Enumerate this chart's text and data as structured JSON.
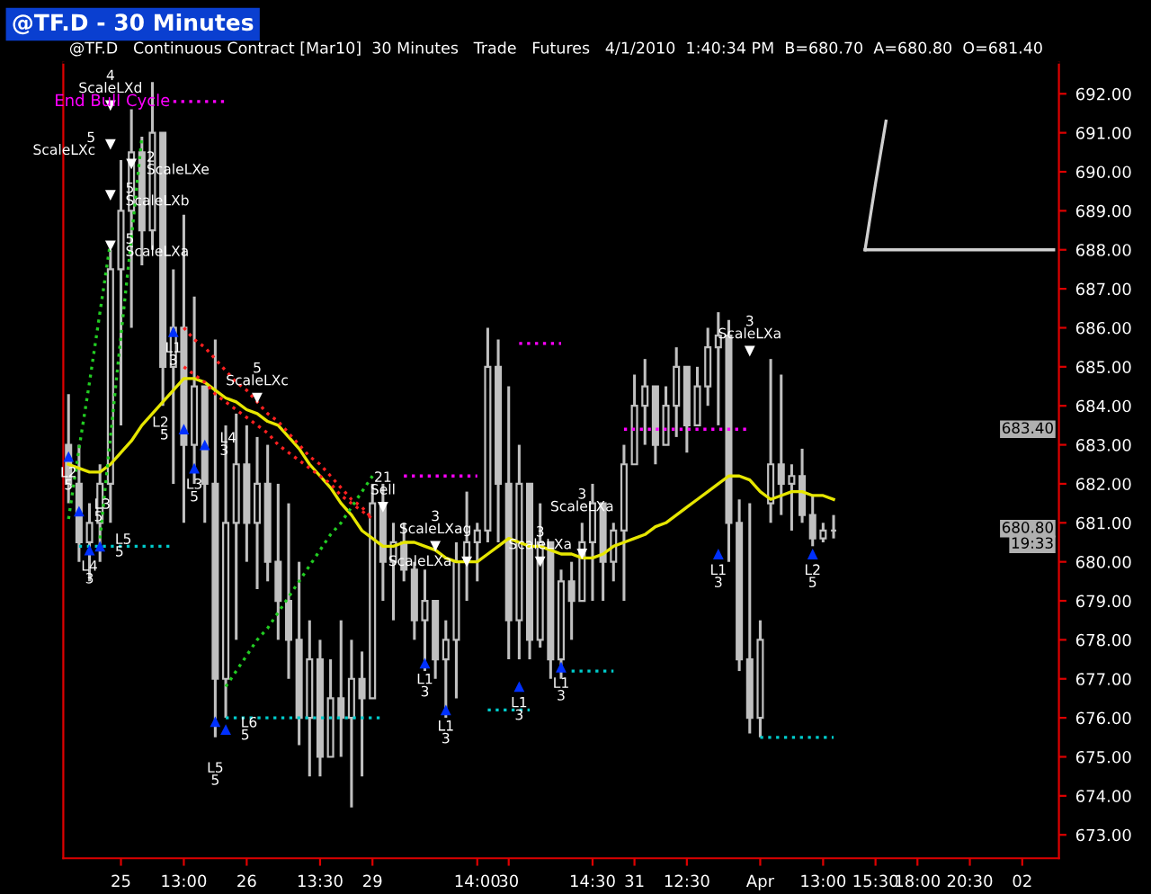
{
  "chart_data": {
    "type": "candlestick",
    "title": "@TF.D - 30 Minutes",
    "subtitle": "@TF.D   Continuous Contract [Mar10]  30 Minutes   Trade   Futures   4/1/2010  1:40:34 PM  B=680.70  A=680.80  O=681.40",
    "categories": [
      null,
      null,
      null,
      null,
      null,
      "25",
      null,
      null,
      null,
      null,
      null,
      "13:00",
      null,
      null,
      null,
      null,
      null,
      "26",
      null,
      null,
      null,
      null,
      null,
      null,
      "13:30",
      null,
      null,
      null,
      null,
      "29",
      null,
      null,
      null,
      null,
      null,
      null,
      null,
      null,
      null,
      "14:00",
      null,
      null,
      "30",
      null,
      null,
      null,
      null,
      null,
      null,
      null,
      "14:30",
      null,
      null,
      null,
      "31",
      null,
      null,
      null,
      null,
      "12:30",
      null,
      null,
      null,
      null,
      null,
      null,
      "Apr",
      null,
      null,
      null,
      null,
      null,
      "13:00",
      null,
      null,
      null,
      null,
      "15:30",
      null,
      null,
      null,
      "18:00",
      null,
      null,
      null,
      null,
      "20:30",
      null,
      null,
      null,
      null,
      "02",
      null,
      null,
      null
    ],
    "color": "#c0c0c0",
    "ohlc": [
      [
        683.0,
        684.3,
        681.5,
        682.0
      ],
      [
        682.0,
        683.0,
        680.0,
        680.5
      ],
      [
        680.5,
        681.5,
        679.5,
        681.0
      ],
      [
        681.0,
        682.5,
        680.0,
        682.0
      ],
      [
        682.0,
        688.0,
        681.0,
        687.5
      ],
      [
        687.5,
        690.3,
        683.5,
        689.0
      ],
      [
        689.0,
        691.6,
        686.0,
        690.5
      ],
      [
        690.5,
        690.9,
        687.6,
        688.5
      ],
      [
        688.5,
        692.3,
        688.0,
        691.0
      ],
      [
        691.0,
        691.0,
        684.0,
        685.0
      ],
      [
        685.0,
        687.5,
        682.0,
        686.0
      ],
      [
        686.0,
        688.9,
        681.0,
        683.0
      ],
      [
        683.0,
        686.8,
        682.0,
        684.5
      ],
      [
        684.5,
        684.5,
        681.0,
        682.0
      ],
      [
        682.0,
        685.7,
        675.5,
        677.0
      ],
      [
        677.0,
        683.5,
        676.0,
        681.0
      ],
      [
        681.0,
        683.8,
        678.0,
        682.5
      ],
      [
        682.5,
        683.5,
        680.0,
        681.0
      ],
      [
        681.0,
        683.2,
        679.3,
        682.0
      ],
      [
        682.0,
        683.0,
        679.5,
        680.0
      ],
      [
        680.0,
        682.0,
        678.0,
        679.0
      ],
      [
        679.0,
        681.5,
        677.0,
        678.0
      ],
      [
        678.0,
        680.0,
        675.3,
        676.0
      ],
      [
        676.0,
        678.5,
        674.5,
        677.5
      ],
      [
        677.5,
        678.0,
        674.5,
        675.0
      ],
      [
        675.0,
        677.5,
        675.0,
        676.5
      ],
      [
        676.5,
        678.5,
        675.0,
        676.0
      ],
      [
        676.0,
        678.0,
        673.7,
        677.0
      ],
      [
        677.0,
        677.7,
        674.5,
        676.5
      ],
      [
        676.5,
        682.0,
        676.5,
        681.5
      ],
      [
        681.5,
        682.0,
        679.0,
        680.0
      ],
      [
        680.0,
        681.0,
        678.5,
        680.5
      ],
      [
        680.5,
        681.0,
        679.5,
        679.8
      ],
      [
        679.8,
        680.0,
        678.0,
        678.5
      ],
      [
        678.5,
        679.8,
        677.2,
        679.0
      ],
      [
        679.0,
        679.0,
        677.0,
        677.5
      ],
      [
        677.5,
        678.5,
        676.0,
        678.0
      ],
      [
        678.0,
        680.5,
        676.5,
        680.0
      ],
      [
        680.0,
        681.8,
        679.0,
        680.5
      ],
      [
        680.5,
        681.0,
        679.5,
        680.8
      ],
      [
        680.8,
        686.0,
        680.5,
        685.0
      ],
      [
        685.0,
        685.7,
        680.5,
        682.0
      ],
      [
        682.0,
        684.5,
        677.5,
        678.5
      ],
      [
        678.5,
        683.0,
        677.5,
        682.0
      ],
      [
        682.0,
        682.0,
        677.5,
        678.0
      ],
      [
        678.0,
        681.5,
        677.8,
        680.5
      ],
      [
        680.5,
        680.5,
        677.0,
        677.5
      ],
      [
        677.5,
        679.8,
        677.0,
        679.5
      ],
      [
        679.5,
        680.0,
        678.0,
        679.0
      ],
      [
        679.0,
        681.0,
        679.0,
        680.5
      ],
      [
        680.5,
        682.0,
        679.0,
        681.5
      ],
      [
        681.5,
        681.5,
        679.0,
        680.0
      ],
      [
        680.0,
        681.0,
        679.5,
        680.8
      ],
      [
        680.8,
        683.0,
        679.0,
        682.5
      ],
      [
        682.5,
        684.8,
        682.5,
        684.0
      ],
      [
        684.0,
        685.2,
        683.0,
        684.5
      ],
      [
        684.5,
        684.5,
        682.5,
        683.0
      ],
      [
        683.0,
        684.5,
        683.0,
        684.0
      ],
      [
        684.0,
        685.5,
        683.2,
        685.0
      ],
      [
        685.0,
        685.0,
        682.8,
        683.5
      ],
      [
        683.5,
        685.0,
        683.5,
        684.5
      ],
      [
        684.5,
        686.0,
        684.0,
        685.5
      ],
      [
        685.5,
        686.4,
        683.5,
        685.8
      ],
      [
        685.8,
        686.2,
        680.0,
        681.0
      ],
      [
        681.0,
        681.6,
        677.2,
        677.5
      ],
      [
        677.5,
        681.5,
        675.6,
        676.0
      ],
      [
        676.0,
        678.5,
        675.5,
        678.0
      ],
      [
        681.5,
        685.2,
        681.0,
        682.5
      ],
      [
        682.5,
        684.8,
        681.2,
        682.0
      ],
      [
        682.0,
        682.5,
        680.8,
        682.2
      ],
      [
        682.2,
        682.9,
        681.0,
        681.2
      ],
      [
        681.2,
        681.7,
        680.4,
        680.6
      ],
      [
        680.6,
        681.0,
        680.5,
        680.8
      ],
      [
        680.8,
        681.2,
        680.6,
        680.8
      ],
      null,
      null,
      null,
      null,
      null,
      null,
      null,
      null,
      null,
      null,
      null,
      null,
      null,
      null,
      null,
      null,
      null,
      null,
      null,
      null,
      null
    ],
    "series": [
      {
        "type": "line",
        "color": "#e6e600",
        "line_style": "solid",
        "values": [
          682.5,
          682.4,
          682.3,
          682.3,
          682.5,
          682.8,
          683.1,
          683.5,
          683.8,
          684.1,
          684.4,
          684.7,
          684.7,
          684.6,
          684.4,
          684.2,
          684.1,
          683.9,
          683.8,
          683.6,
          683.5,
          683.2,
          682.9,
          682.5,
          682.2,
          681.9,
          681.5,
          681.2,
          680.8,
          680.6,
          680.4,
          680.4,
          680.5,
          680.5,
          680.4,
          680.3,
          680.1,
          680.0,
          680.0,
          680.0,
          680.2,
          680.4,
          680.6,
          680.5,
          680.4,
          680.4,
          680.3,
          680.2,
          680.2,
          680.1,
          680.1,
          680.2,
          680.4,
          680.5,
          680.6,
          680.7,
          680.9,
          681.0,
          681.2,
          681.4,
          681.6,
          681.8,
          682.0,
          682.2,
          682.2,
          682.1,
          681.8,
          681.6,
          681.7,
          681.8,
          681.8,
          681.7,
          681.7,
          681.6,
          null,
          null,
          null,
          null,
          null,
          null,
          null,
          null,
          null,
          null,
          null,
          null,
          null,
          null,
          null,
          null,
          null,
          null,
          null,
          null,
          null
        ]
      },
      {
        "type": "line",
        "color": "#ff2020",
        "line_style": "dotted",
        "values": [
          null,
          null,
          null,
          null,
          null,
          null,
          null,
          null,
          null,
          null,
          null,
          686.0,
          685.7,
          685.5,
          685.2,
          684.9,
          684.6,
          684.4,
          684.1,
          683.8,
          683.6,
          683.3,
          683.0,
          682.7,
          682.5,
          682.2,
          681.9,
          681.6,
          681.4,
          681.1,
          null,
          null,
          null,
          null,
          null,
          null,
          null,
          null,
          null,
          null,
          null,
          null,
          null,
          null,
          null,
          null,
          null,
          null,
          null,
          null,
          null,
          null,
          null,
          null,
          null,
          null,
          null,
          null,
          null,
          null,
          null,
          null,
          null,
          null,
          null,
          null,
          null,
          null,
          null,
          null,
          null,
          null,
          null,
          null,
          null,
          null,
          null,
          null,
          null,
          null,
          null,
          null,
          null,
          null,
          null,
          null,
          null,
          null,
          null,
          null,
          null,
          null,
          null,
          null,
          null
        ]
      },
      {
        "type": "line",
        "color": "#ff2020",
        "line_style": "dotted",
        "values": [
          null,
          null,
          null,
          null,
          null,
          null,
          null,
          null,
          null,
          null,
          null,
          685.0,
          684.8,
          684.6,
          684.3,
          684.1,
          683.9,
          683.7,
          683.5,
          683.3,
          683.0,
          682.8,
          682.6,
          682.4,
          682.2,
          682.0,
          681.7,
          681.5,
          681.3,
          681.1,
          null,
          null,
          null,
          null,
          null,
          null,
          null,
          null,
          null,
          null,
          null,
          null,
          null,
          null,
          null,
          null,
          null,
          null,
          null,
          null,
          null,
          null,
          null,
          null,
          null,
          null,
          null,
          null,
          null,
          null,
          null,
          null,
          null,
          null,
          null,
          null,
          null,
          null,
          null,
          null,
          null,
          null,
          null,
          null,
          null,
          null,
          null,
          null,
          null,
          null,
          null,
          null,
          null,
          null,
          null,
          null,
          null,
          null,
          null,
          null,
          null,
          null,
          null,
          null,
          null
        ]
      },
      {
        "type": "line",
        "color": "#22cc22",
        "line_style": "dotted",
        "values": [
          681.1,
          682.9,
          684.6,
          686.4,
          688.2,
          null,
          null,
          null,
          null,
          null,
          null,
          null,
          null,
          null,
          null,
          676.8,
          677.2,
          677.6,
          678.0,
          678.3,
          678.7,
          679.1,
          679.5,
          679.9,
          680.3,
          680.7,
          681.0,
          681.4,
          681.8,
          682.2,
          null,
          null,
          null,
          null,
          null,
          null,
          null,
          null,
          null,
          null,
          null,
          null,
          null,
          null,
          null,
          null,
          null,
          null,
          null,
          null,
          null,
          null,
          null,
          null,
          null,
          null,
          null,
          null,
          null,
          null,
          null,
          null,
          null,
          null,
          null,
          null,
          null,
          null,
          null,
          null,
          null,
          null,
          null,
          null,
          null,
          null,
          null,
          null,
          null,
          null,
          null,
          null,
          null,
          null,
          null,
          null,
          null,
          null,
          null,
          null,
          null,
          null,
          null,
          null,
          null
        ]
      },
      {
        "type": "line",
        "color": "#22cc22",
        "line_style": "dotted",
        "values": [
          null,
          null,
          null,
          680.6,
          683.2,
          685.8,
          688.3,
          690.9,
          null,
          null,
          null,
          null,
          null,
          null,
          null,
          null,
          null,
          null,
          null,
          null,
          null,
          null,
          null,
          null,
          null,
          null,
          null,
          null,
          null,
          null,
          null,
          null,
          null,
          null,
          null,
          null,
          null,
          null,
          null,
          null,
          null,
          null,
          null,
          null,
          null,
          null,
          null,
          null,
          null,
          null,
          null,
          null,
          null,
          null,
          null,
          null,
          null,
          null,
          null,
          null,
          null,
          null,
          null,
          null,
          null,
          null,
          null,
          null,
          null,
          null,
          null,
          null,
          null,
          null,
          null,
          null,
          null,
          null,
          null,
          null,
          null,
          null,
          null,
          null,
          null,
          null,
          null,
          null,
          null,
          null,
          null,
          null,
          null,
          null,
          null
        ]
      },
      {
        "type": "line",
        "name": "End Bull Cycle",
        "color": "#ff00ff",
        "line_style": "dotted",
        "values": [
          null,
          null,
          null,
          null,
          null,
          null,
          null,
          null,
          null,
          null,
          691.8,
          691.8,
          691.8,
          691.8,
          691.8,
          691.8,
          null,
          null,
          null,
          null,
          null,
          null,
          null,
          null,
          null,
          null,
          null,
          null,
          null,
          null,
          null,
          null,
          null,
          null,
          null,
          null,
          null,
          null,
          null,
          null,
          null,
          null,
          null,
          null,
          null,
          null,
          null,
          null,
          null,
          null,
          null,
          null,
          null,
          null,
          null,
          null,
          null,
          null,
          null,
          null,
          null,
          null,
          null,
          null,
          null,
          null,
          null,
          null,
          null,
          null,
          null,
          null,
          null,
          null,
          null,
          null,
          null,
          null,
          null,
          null,
          null,
          null,
          null,
          null,
          null,
          null,
          null,
          null,
          null,
          null,
          null,
          null,
          null,
          null,
          null
        ]
      },
      {
        "type": "line",
        "color": "#ff00ff",
        "line_style": "dotted",
        "values": [
          null,
          null,
          null,
          null,
          null,
          null,
          null,
          null,
          null,
          null,
          null,
          null,
          null,
          null,
          null,
          null,
          null,
          null,
          null,
          null,
          null,
          null,
          null,
          null,
          null,
          null,
          null,
          null,
          null,
          null,
          null,
          null,
          682.2,
          682.2,
          682.2,
          682.2,
          682.2,
          682.2,
          682.2,
          682.2,
          null,
          null,
          null,
          685.6,
          685.6,
          685.6,
          685.6,
          685.6,
          null,
          null,
          null,
          null,
          null,
          683.4,
          683.4,
          683.4,
          683.4,
          683.4,
          683.4,
          683.4,
          683.4,
          683.4,
          683.4,
          683.4,
          683.4,
          683.4,
          null,
          null,
          null,
          null,
          null,
          null,
          null,
          null,
          null,
          null,
          null,
          null,
          null,
          null,
          null,
          null,
          null,
          null,
          null,
          null,
          null,
          null,
          null,
          null,
          null,
          null,
          null,
          null,
          null
        ]
      },
      {
        "type": "line",
        "color": "#00cccc",
        "line_style": "dotted",
        "values": [
          null,
          680.4,
          680.4,
          680.4,
          680.4,
          680.4,
          680.4,
          680.4,
          680.4,
          680.4,
          680.4,
          null,
          null,
          null,
          null,
          676.0,
          676.0,
          676.0,
          676.0,
          676.0,
          676.0,
          676.0,
          676.0,
          676.0,
          676.0,
          676.0,
          676.0,
          676.0,
          676.0,
          676.0,
          676.0,
          null,
          null,
          null,
          null,
          null,
          null,
          null,
          null,
          null,
          676.2,
          676.2,
          676.2,
          676.2,
          676.2,
          null,
          null,
          null,
          677.2,
          677.2,
          677.2,
          677.2,
          677.2,
          null,
          null,
          null,
          null,
          null,
          null,
          null,
          null,
          null,
          null,
          null,
          null,
          null,
          675.5,
          675.5,
          675.5,
          675.5,
          675.5,
          675.5,
          675.5,
          675.5,
          null,
          null,
          null,
          null,
          null,
          null,
          null,
          null,
          null,
          null,
          null,
          null,
          null,
          null,
          null,
          null,
          null,
          null,
          null,
          null,
          null
        ]
      },
      {
        "type": "line",
        "color": "#d0d0d0",
        "line_style": "solid",
        "values": [
          null,
          null,
          null,
          null,
          null,
          null,
          null,
          null,
          null,
          null,
          null,
          null,
          null,
          null,
          null,
          null,
          null,
          null,
          null,
          null,
          null,
          null,
          null,
          null,
          null,
          null,
          null,
          null,
          null,
          null,
          null,
          null,
          null,
          null,
          null,
          null,
          null,
          null,
          null,
          null,
          null,
          null,
          null,
          null,
          null,
          null,
          null,
          null,
          null,
          null,
          null,
          null,
          null,
          null,
          null,
          null,
          null,
          null,
          null,
          null,
          null,
          null,
          null,
          null,
          null,
          null,
          null,
          null,
          null,
          null,
          null,
          null,
          null,
          null,
          null,
          null,
          688.0,
          688.0,
          688.0,
          688.0,
          688.0,
          688.0,
          688.0,
          688.0,
          688.0,
          688.0,
          688.0,
          688.0,
          688.0,
          688.0,
          688.0,
          688.0,
          688.0,
          688.0,
          688.0
        ]
      },
      {
        "type": "line",
        "color": "#d0d0d0",
        "line_style": "solid",
        "values": [
          null,
          null,
          null,
          null,
          null,
          null,
          null,
          null,
          null,
          null,
          null,
          null,
          null,
          null,
          null,
          null,
          null,
          null,
          null,
          null,
          null,
          null,
          null,
          null,
          null,
          null,
          null,
          null,
          null,
          null,
          null,
          null,
          null,
          null,
          null,
          null,
          null,
          null,
          null,
          null,
          null,
          null,
          null,
          null,
          null,
          null,
          null,
          null,
          null,
          null,
          null,
          null,
          null,
          null,
          null,
          null,
          null,
          null,
          null,
          null,
          null,
          null,
          null,
          null,
          null,
          null,
          null,
          null,
          null,
          null,
          null,
          null,
          null,
          null,
          null,
          null,
          688.0,
          689.7,
          691.3,
          null,
          null,
          null,
          null,
          null,
          null,
          null,
          null,
          null,
          null,
          null,
          null,
          null,
          null,
          null,
          null
        ]
      },
      {
        "type": "scatter",
        "color": "#0030ff",
        "marker": "triangle",
        "values": [
          682.7,
          681.3,
          680.3,
          680.4,
          null,
          null,
          null,
          null,
          null,
          null,
          685.9,
          683.4,
          682.4,
          683.0,
          675.9,
          675.7,
          null,
          null,
          null,
          null,
          null,
          null,
          null,
          null,
          null,
          null,
          null,
          null,
          null,
          null,
          null,
          null,
          null,
          null,
          677.4,
          null,
          676.2,
          null,
          null,
          null,
          null,
          null,
          null,
          676.8,
          null,
          null,
          null,
          677.3,
          null,
          null,
          null,
          null,
          null,
          null,
          null,
          null,
          null,
          null,
          null,
          null,
          null,
          null,
          680.2,
          null,
          null,
          null,
          null,
          null,
          null,
          null,
          null,
          680.2,
          null,
          null,
          null,
          null,
          null,
          null,
          null,
          null,
          null,
          null,
          null,
          null,
          null,
          null,
          null,
          null,
          null,
          null,
          null,
          null,
          null,
          null,
          null
        ]
      },
      {
        "type": "scatter",
        "color": "#ffffff",
        "marker": "triangle_down",
        "values": [
          null,
          null,
          null,
          null,
          691.7,
          null,
          690.2,
          null,
          null,
          null,
          null,
          null,
          null,
          null,
          null,
          null,
          null,
          null,
          684.2,
          null,
          null,
          null,
          null,
          null,
          null,
          null,
          null,
          null,
          null,
          null,
          681.4,
          null,
          null,
          null,
          null,
          680.4,
          null,
          null,
          680.0,
          null,
          null,
          null,
          null,
          null,
          null,
          680.0,
          null,
          null,
          null,
          680.2,
          null,
          null,
          null,
          null,
          null,
          null,
          null,
          null,
          null,
          null,
          null,
          null,
          null,
          null,
          null,
          685.4,
          null,
          null,
          null,
          null,
          null,
          null,
          null,
          null,
          null,
          null,
          null,
          null,
          null,
          null,
          null,
          null,
          null,
          null,
          null,
          null,
          null,
          null,
          null,
          null,
          null,
          null,
          null,
          null,
          null
        ]
      },
      {
        "type": "scatter",
        "color": "#ffffff",
        "marker": "triangle_down",
        "values": [
          null,
          null,
          null,
          null,
          690.7,
          null,
          null,
          null,
          null,
          null,
          null,
          null,
          null,
          null,
          null,
          null,
          null,
          null,
          null,
          null,
          null,
          null,
          null,
          null,
          null,
          null,
          null,
          null,
          null,
          null,
          null,
          null,
          null,
          null,
          null,
          null,
          null,
          null,
          null,
          null,
          null,
          null,
          null,
          null,
          null,
          null,
          null,
          null,
          null,
          null,
          null,
          null,
          null,
          null,
          null,
          null,
          null,
          null,
          null,
          null,
          null,
          null,
          null,
          null,
          null,
          null,
          null,
          null,
          null,
          null,
          null,
          null,
          null,
          null,
          null,
          null,
          null,
          null,
          null,
          null,
          null,
          null,
          null,
          null,
          null,
          null,
          null,
          null,
          null,
          null,
          null,
          null,
          null,
          null,
          null
        ]
      },
      {
        "type": "scatter",
        "color": "#ffffff",
        "marker": "triangle_down",
        "values": [
          null,
          null,
          null,
          null,
          689.4,
          null,
          null,
          null,
          null,
          null,
          null,
          null,
          null,
          null,
          null,
          null,
          null,
          null,
          null,
          null,
          null,
          null,
          null,
          null,
          null,
          null,
          null,
          null,
          null,
          null,
          null,
          null,
          null,
          null,
          null,
          null,
          null,
          null,
          null,
          null,
          null,
          null,
          null,
          null,
          null,
          null,
          null,
          null,
          null,
          null,
          null,
          null,
          null,
          null,
          null,
          null,
          null,
          null,
          null,
          null,
          null,
          null,
          null,
          null,
          null,
          null,
          null,
          null,
          null,
          null,
          null,
          null,
          null,
          null,
          null,
          null,
          null,
          null,
          null,
          null,
          null,
          null,
          null,
          null,
          null,
          null,
          null,
          null,
          null,
          null,
          null,
          null,
          null,
          null,
          null
        ]
      },
      {
        "type": "scatter",
        "color": "#ffffff",
        "marker": "triangle_down",
        "values": [
          null,
          null,
          null,
          null,
          688.1,
          null,
          null,
          null,
          null,
          null,
          null,
          null,
          null,
          null,
          null,
          null,
          null,
          null,
          null,
          null,
          null,
          null,
          null,
          null,
          null,
          null,
          null,
          null,
          null,
          null,
          null,
          null,
          null,
          null,
          null,
          null,
          null,
          null,
          null,
          null,
          null,
          null,
          null,
          null,
          null,
          null,
          null,
          null,
          null,
          null,
          null,
          null,
          null,
          null,
          null,
          null,
          null,
          null,
          null,
          null,
          null,
          null,
          null,
          null,
          null,
          null,
          null,
          null,
          null,
          null,
          null,
          null,
          null,
          null,
          null,
          null,
          null,
          null,
          null,
          null,
          null,
          null,
          null,
          null,
          null,
          null,
          null,
          null,
          null,
          null,
          null,
          null,
          null,
          null,
          null
        ]
      }
    ],
    "annotations": [
      "5\nScaleLXc",
      "5\nScaleLXb",
      "5\nScaleLXa",
      "4\nScaleLXd",
      "2\nScaleLXe",
      "5\nScaleLXc",
      "21\nSell",
      "3\nScaleLXag",
      "ScaleLXa",
      "3\nScaleLXa",
      "3\nScaleLXa",
      "3\nScaleLXa",
      "L2\n5",
      "L3\n5",
      "L4\n3",
      "L5\n5",
      "L1\n3",
      "L2\n5",
      "L3\n5",
      "L4\n3",
      "L5\n5",
      "L6\n5",
      "L1\n3",
      "L1\n3",
      "L1\n3",
      "L1\n3",
      "L1\n3",
      "L2\n5",
      {
        "text": "683.40",
        "y": 683.4
      },
      {
        "text": "680.80",
        "y": 680.85
      },
      {
        "text": "19:33",
        "y": 680.45
      }
    ],
    "ylim": [
      672.4,
      692.8
    ],
    "yticks": [
      {
        "value": 673,
        "label": "673.00"
      },
      {
        "value": 674,
        "label": "674.00"
      },
      {
        "value": 675,
        "label": "675.00"
      },
      {
        "value": 676,
        "label": "676.00"
      },
      {
        "value": 677,
        "label": "677.00"
      },
      {
        "value": 678,
        "label": "678.00"
      },
      {
        "value": 679,
        "label": "679.00"
      },
      {
        "value": 680,
        "label": "680.00"
      },
      {
        "value": 681,
        "label": "681.00"
      },
      {
        "value": 682,
        "label": "682.00"
      },
      {
        "value": 683,
        "label": "683.00"
      },
      {
        "value": 684,
        "label": "684.00"
      },
      {
        "value": 685,
        "label": "685.00"
      },
      {
        "value": 686,
        "label": "686.00"
      },
      {
        "value": 687,
        "label": "687.00"
      },
      {
        "value": 688,
        "label": "688.00"
      },
      {
        "value": 689,
        "label": "689.00"
      },
      {
        "value": 690,
        "label": "690.00"
      },
      {
        "value": 691,
        "label": "691.00"
      },
      {
        "value": 692,
        "label": "692.00"
      }
    ],
    "grid": false
  }
}
